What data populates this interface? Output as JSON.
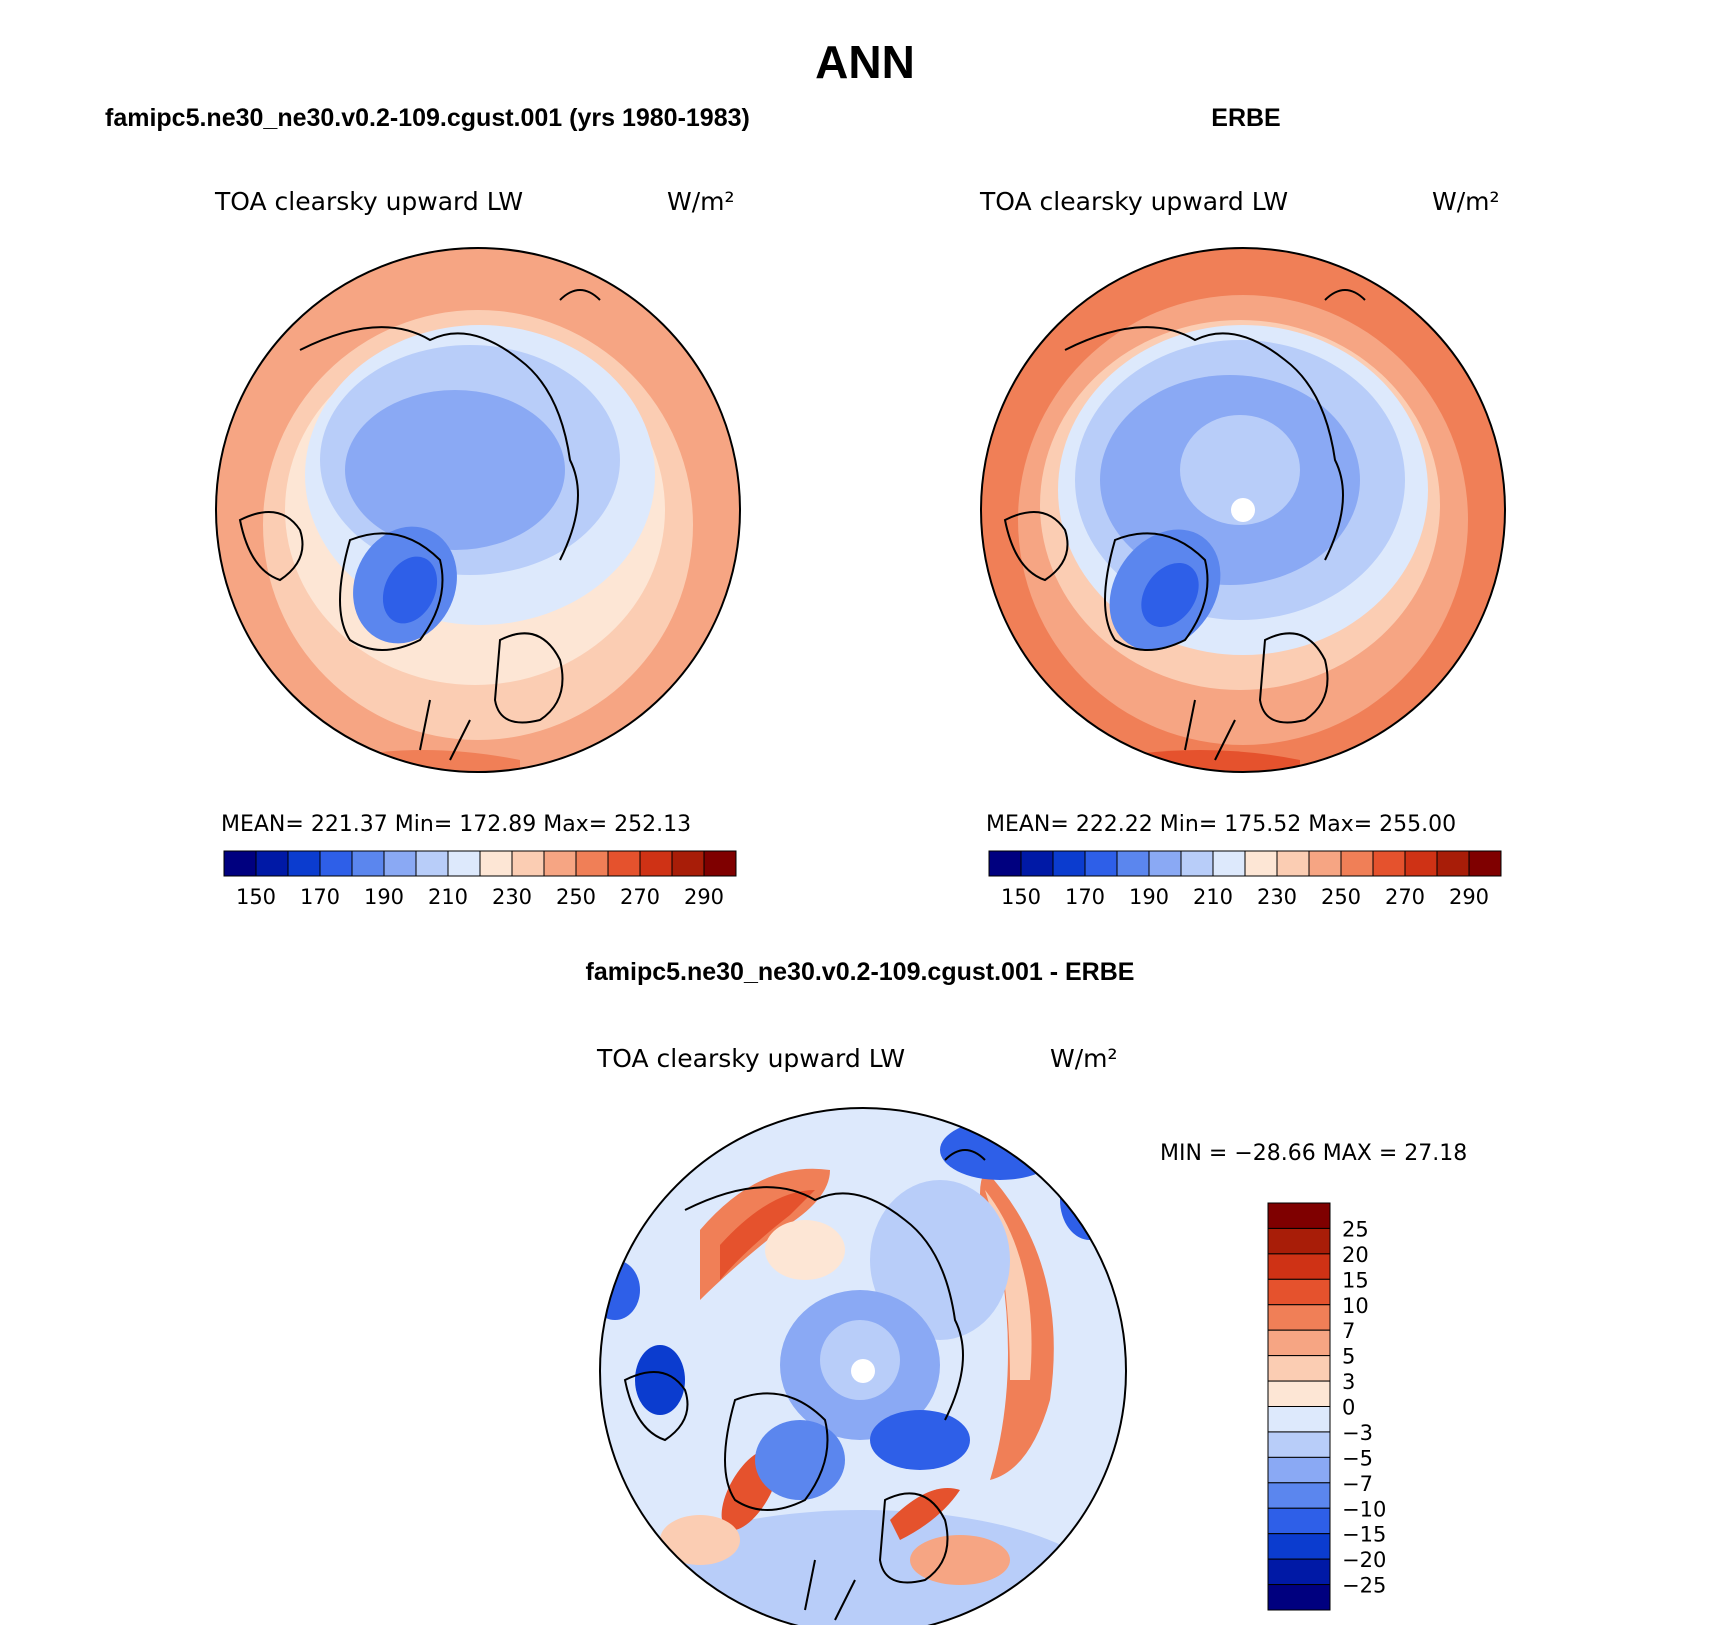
{
  "title": "ANN",
  "colors": {
    "scale": [
      "#00007f",
      "#0019a6",
      "#0b3ccf",
      "#2e5fe8",
      "#5b86ee",
      "#8aa9f4",
      "#b8cdf9",
      "#dde9fc",
      "#fde6d5",
      "#fbcdb3",
      "#f6a583",
      "#f07f57",
      "#e5522d",
      "#cf3215",
      "#a81d08",
      "#7f0000"
    ]
  },
  "panels": [
    {
      "header": "famipc5.ne30_ne30.v0.2-109.cgust.001 (yrs 1980-1983)",
      "variable": "TOA clearsky upward LW",
      "units": "W/m²",
      "stats": "MEAN= 221.37   Min= 172.89   Max= 252.13",
      "colorbar_labels": [
        "150",
        "170",
        "190",
        "210",
        "230",
        "250",
        "270",
        "290"
      ]
    },
    {
      "header": "ERBE",
      "variable": "TOA clearsky upward LW",
      "units": "W/m²",
      "stats": "MEAN= 222.22   Min= 175.52   Max= 255.00",
      "colorbar_labels": [
        "150",
        "170",
        "190",
        "210",
        "230",
        "250",
        "270",
        "290"
      ]
    },
    {
      "header": "famipc5.ne30_ne30.v0.2-109.cgust.001 - ERBE",
      "variable": "TOA clearsky upward LW",
      "units": "W/m²",
      "stats": "MIN = −28.66 MAX =  27.18",
      "colorbar_labels": [
        "25",
        "20",
        "15",
        "10",
        "7",
        "5",
        "3",
        "0",
        "−3",
        "−5",
        "−7",
        "−10",
        "−15",
        "−20",
        "−25"
      ]
    }
  ]
}
